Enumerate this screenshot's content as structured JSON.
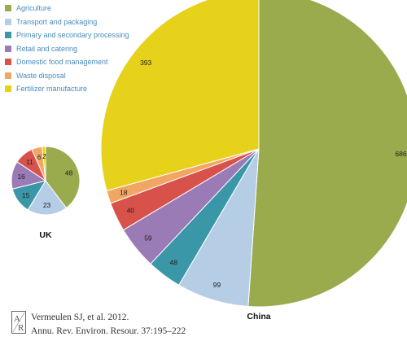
{
  "legend": {
    "items": [
      {
        "label": "Agriculture",
        "color": "#9aab4e"
      },
      {
        "label": "Transport and packaging",
        "color": "#b6cde6"
      },
      {
        "label": "Primary and secondary processing",
        "color": "#3a97a8"
      },
      {
        "label": "Retail and catering",
        "color": "#9b7bb6"
      },
      {
        "label": "Domestic food management",
        "color": "#d8524c"
      },
      {
        "label": "Waste disposal",
        "color": "#f2a664"
      },
      {
        "label": "Fertilizer manufacture",
        "color": "#e6d21a"
      }
    ]
  },
  "chart_data": [
    {
      "type": "pie",
      "title": "UK",
      "categories": [
        "Agriculture",
        "Transport and packaging",
        "Primary and secondary processing",
        "Retail and catering",
        "Domestic food management",
        "Waste disposal",
        "Fertilizer manufacture"
      ],
      "values": [
        48,
        23,
        15,
        16,
        11,
        6,
        2
      ]
    },
    {
      "type": "pie",
      "title": "China",
      "categories": [
        "Agriculture",
        "Transport and packaging",
        "Primary and secondary processing",
        "Retail and catering",
        "Domestic food management",
        "Waste disposal",
        "Fertilizer manufacture"
      ],
      "values": [
        686,
        99,
        48,
        59,
        40,
        18,
        393
      ]
    }
  ],
  "citation": {
    "line1": "Vermeulen SJ, et al. 2012.",
    "line2": "Annu. Rev. Environ. Resour. 37:195–222"
  }
}
